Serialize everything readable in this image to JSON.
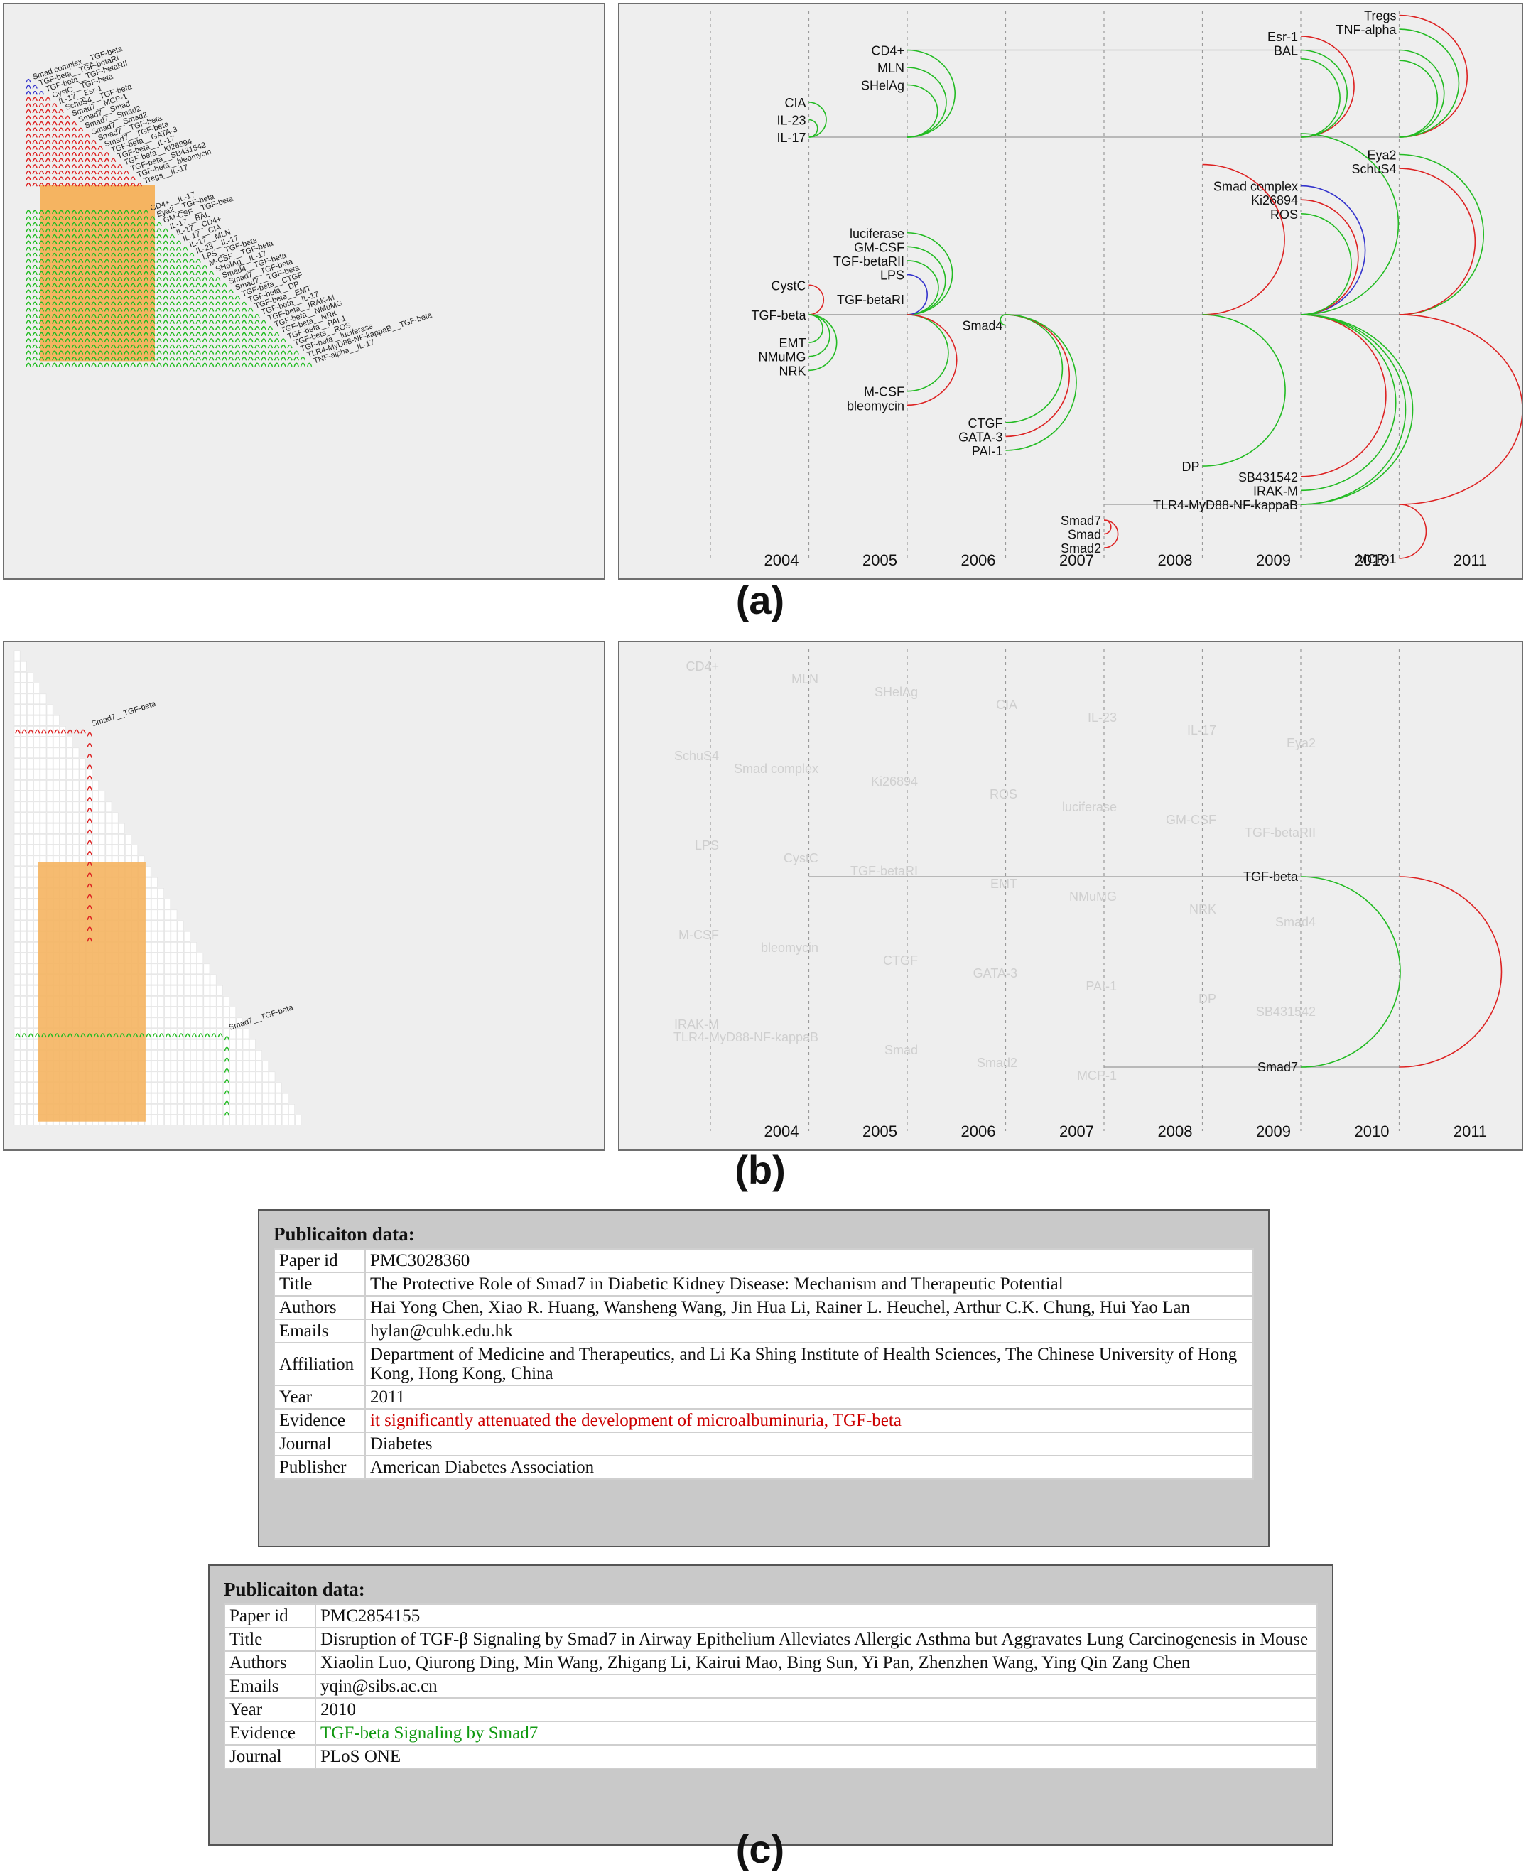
{
  "figure": {
    "labels": [
      "(a)",
      "(b)",
      "(c)"
    ]
  },
  "matrix_a": {
    "row_labels": [
      "Smad complex__TGF-beta",
      "TGF-beta__TGF-betaRI",
      "TGF-beta__TGF-betaRII",
      "CystC__TGF-beta",
      "IL-17__Esr-1",
      "SchuS4__TGF-beta",
      "Smad7__MCP-1",
      "Smad7__Smad",
      "Smad7__Smad2",
      "Smad7__Smad2",
      "Smad7__TGF-beta",
      "Smad7__TGF-beta",
      "TGF-beta__GATA-3",
      "TGF-beta__IL-17",
      "TGF-beta__Ki26894",
      "TGF-beta__SB431542",
      "TGF-beta__bleomycin",
      "Tregs__IL-17",
      "CD4+__IL-17",
      "Eya2__TGF-beta",
      "GM-CSF__TGF-beta",
      "IL-17__BAL",
      "IL-17__CD4+",
      "IL-17__CIA",
      "IL-17__MLN",
      "IL-23__IL-17",
      "LPS__TGF-beta",
      "M-CSF__TGF-beta",
      "SHelAg__IL-17",
      "Smad4__TGF-beta",
      "Smad7__TGF-beta",
      "Smad7__TGF-beta",
      "TGF-beta__CTGF",
      "TGF-beta__DP",
      "TGF-beta__EMT",
      "TGF-beta__IL-17",
      "TGF-beta__IRAK-M",
      "TGF-beta__NMuMG",
      "TGF-beta__NRK",
      "TGF-beta__PAI-1",
      "TGF-beta__ROS",
      "TGF-beta__luciferase",
      "TLR4-MyD88-NF-kappaB__TGF-beta",
      "TNF-alpha__IL-17"
    ],
    "row_colors": [
      "blue",
      "blue",
      "blue",
      "red",
      "red",
      "red",
      "red",
      "red",
      "red",
      "red",
      "red",
      "red",
      "red",
      "red",
      "red",
      "red",
      "red",
      "red",
      "green",
      "green",
      "green",
      "green",
      "green",
      "green",
      "green",
      "green",
      "green",
      "green",
      "green",
      "green",
      "green",
      "green",
      "green",
      "green",
      "green",
      "green",
      "green",
      "green",
      "green",
      "green",
      "green",
      "green",
      "green",
      "green"
    ],
    "highlight_color": "#f5b461",
    "colors": {
      "red": "#dd2222",
      "green": "#22bb22",
      "blue": "#3333cc"
    }
  },
  "arc_a": {
    "years": [
      "2004",
      "2005",
      "2006",
      "2007",
      "2008",
      "2009",
      "2010",
      "2011"
    ],
    "nodes": [
      {
        "label": "CD4+",
        "year": "2006",
        "row": 1
      },
      {
        "label": "MLN",
        "year": "2006",
        "row": 2
      },
      {
        "label": "SHelAg",
        "year": "2006",
        "row": 3
      },
      {
        "label": "CIA",
        "year": "2005",
        "row": 4
      },
      {
        "label": "IL-23",
        "year": "2005",
        "row": 5
      },
      {
        "label": "IL-17",
        "year": "2005",
        "row": 6
      },
      {
        "label": "Esr-1",
        "year": "2010",
        "row": 0.2
      },
      {
        "label": "BAL",
        "year": "2010",
        "row": 1
      },
      {
        "label": "Tregs",
        "year": "2011",
        "row": -1
      },
      {
        "label": "TNF-alpha",
        "year": "2011",
        "row": -0.2
      },
      {
        "label": "Eya2",
        "year": "2011",
        "row": 7
      },
      {
        "label": "SchuS4",
        "year": "2011",
        "row": 7.8
      },
      {
        "label": "Smad complex",
        "year": "2010",
        "row": 8.8
      },
      {
        "label": "Ki26894",
        "year": "2010",
        "row": 9.6
      },
      {
        "label": "ROS",
        "year": "2010",
        "row": 10.4
      },
      {
        "label": "luciferase",
        "year": "2006",
        "row": 11.5
      },
      {
        "label": "GM-CSF",
        "year": "2006",
        "row": 12.3
      },
      {
        "label": "TGF-betaRII",
        "year": "2006",
        "row": 13.1
      },
      {
        "label": "LPS",
        "year": "2006",
        "row": 13.9
      },
      {
        "label": "CystC",
        "year": "2005",
        "row": 14.5
      },
      {
        "label": "TGF-betaRI",
        "year": "2006",
        "row": 15.3
      },
      {
        "label": "TGF-beta",
        "year": "2005",
        "row": 16.2
      },
      {
        "label": "Smad4",
        "year": "2007",
        "row": 16.8
      },
      {
        "label": "EMT",
        "year": "2005",
        "row": 17.8
      },
      {
        "label": "NMuMG",
        "year": "2005",
        "row": 18.6
      },
      {
        "label": "NRK",
        "year": "2005",
        "row": 19.4
      },
      {
        "label": "M-CSF",
        "year": "2006",
        "row": 20.6
      },
      {
        "label": "bleomycin",
        "year": "2006",
        "row": 21.4
      },
      {
        "label": "CTGF",
        "year": "2007",
        "row": 22.4
      },
      {
        "label": "GATA-3",
        "year": "2007",
        "row": 23.2
      },
      {
        "label": "PAI-1",
        "year": "2007",
        "row": 24.0
      },
      {
        "label": "DP",
        "year": "2009",
        "row": 24.9
      },
      {
        "label": "SB431542",
        "year": "2010",
        "row": 25.5
      },
      {
        "label": "IRAK-M",
        "year": "2010",
        "row": 26.3
      },
      {
        "label": "TLR4-MyD88-NF-kappaB",
        "year": "2010",
        "row": 27.1
      },
      {
        "label": "Smad7",
        "year": "2008",
        "row": 28.0
      },
      {
        "label": "Smad",
        "year": "2008",
        "row": 28.8
      },
      {
        "label": "Smad2",
        "year": "2008",
        "row": 29.6
      },
      {
        "label": "MCP-1",
        "year": "2011",
        "row": 30.2
      }
    ]
  },
  "matrix_b": {
    "selected_labels": [
      "Smad7__TGF-beta",
      "Smad7__TGF-beta"
    ]
  },
  "arc_b": {
    "years": [
      "2004",
      "2005",
      "2006",
      "2007",
      "2008",
      "2009",
      "2010",
      "2011"
    ],
    "active_nodes": [
      "TGF-beta",
      "Smad7"
    ],
    "faded_labels": [
      "CD4+",
      "MLN",
      "SHelAg",
      "CIA",
      "IL-23",
      "IL-17",
      "Eya2",
      "SchuS4",
      "Smad complex",
      "Ki26894",
      "ROS",
      "luciferase",
      "GM-CSF",
      "TGF-betaRII",
      "LPS",
      "CystC",
      "TGF-betaRI",
      "EMT",
      "NMuMG",
      "NRK",
      "Smad4",
      "M-CSF",
      "bleomycin",
      "CTGF",
      "GATA-3",
      "PAI-1",
      "DP",
      "SB431542",
      "IRAK-M",
      "TLR4-MyD88-NF-kappaB",
      "Smad",
      "Smad2",
      "MCP-1"
    ]
  },
  "publication1": {
    "header": "Publicaiton data:",
    "rows": [
      {
        "key": "Paper id",
        "value": "PMC3028360"
      },
      {
        "key": "Title",
        "value": "The Protective Role of Smad7 in Diabetic Kidney Disease: Mechanism and Therapeutic Potential"
      },
      {
        "key": "Authors",
        "value": "Hai Yong Chen, Xiao R. Huang, Wansheng Wang, Jin Hua Li, Rainer L. Heuchel, Arthur C.K. Chung, Hui Yao Lan"
      },
      {
        "key": "Emails",
        "value": "hylan@cuhk.edu.hk"
      },
      {
        "key": "Affiliation",
        "value": "Department of Medicine and Therapeutics, and Li Ka Shing Institute of Health Sciences, The Chinese University of Hong Kong, Hong Kong, China"
      },
      {
        "key": "Year",
        "value": "2011"
      },
      {
        "key": "Evidence",
        "value": "it significantly attenuated the development of microalbuminuria, TGF-beta",
        "evidence": "red"
      },
      {
        "key": "Journal",
        "value": "Diabetes"
      },
      {
        "key": "Publisher",
        "value": "American Diabetes Association"
      }
    ]
  },
  "publication2": {
    "header": "Publicaiton data:",
    "rows": [
      {
        "key": "Paper id",
        "value": "PMC2854155"
      },
      {
        "key": "Title",
        "value": "Disruption of TGF-β Signaling by Smad7 in Airway Epithelium Alleviates Allergic Asthma but Aggravates Lung Carcinogenesis in Mouse"
      },
      {
        "key": "Authors",
        "value": "Xiaolin Luo, Qiurong Ding, Min Wang, Zhigang Li, Kairui Mao, Bing Sun, Yi Pan, Zhenzhen Wang, Ying Qin Zang Chen"
      },
      {
        "key": "Emails",
        "value": "yqin@sibs.ac.cn"
      },
      {
        "key": "Year",
        "value": "2010"
      },
      {
        "key": "Evidence",
        "value": "TGF-beta Signaling by Smad7",
        "evidence": "green"
      },
      {
        "key": "Journal",
        "value": "PLoS ONE"
      }
    ]
  }
}
